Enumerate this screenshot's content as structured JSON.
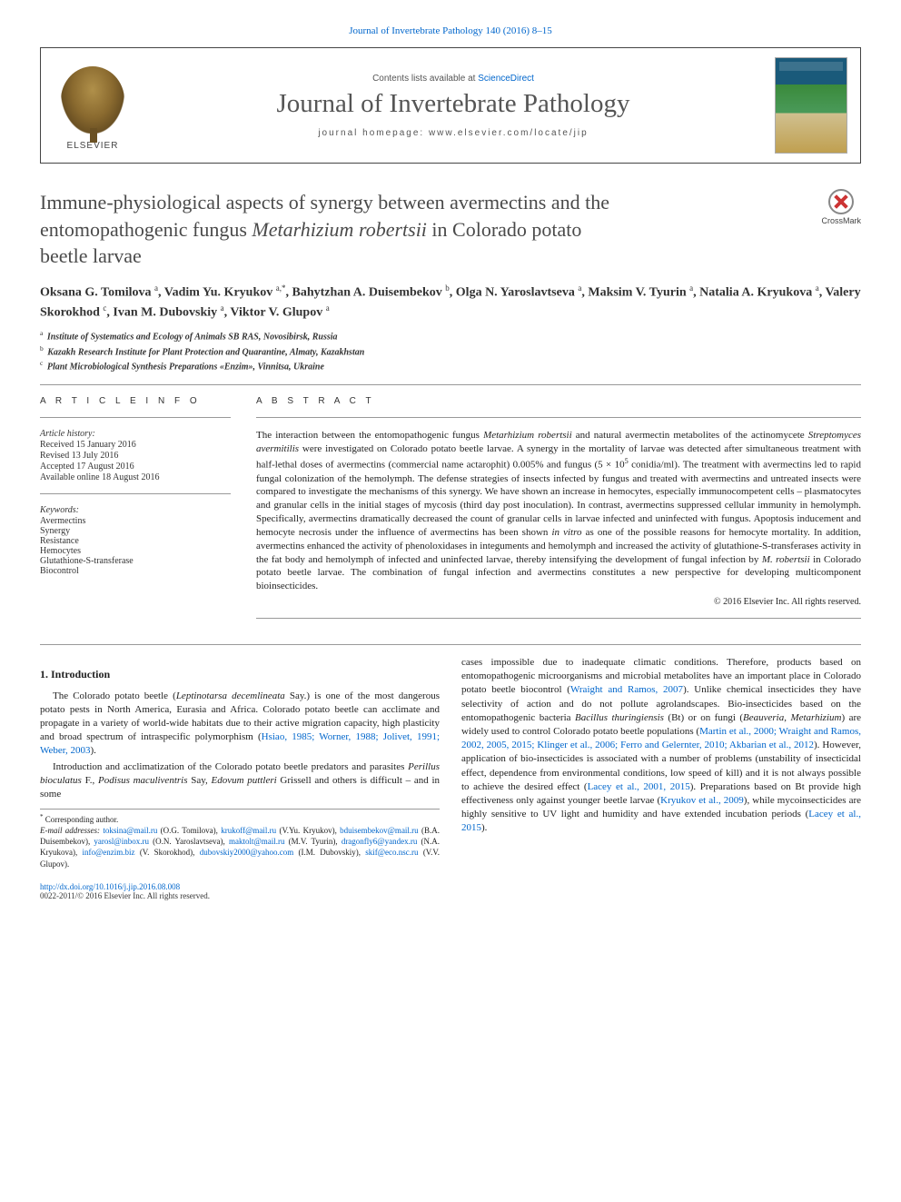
{
  "top_link": "Journal of Invertebrate Pathology 140 (2016) 8–15",
  "masthead": {
    "contents_prefix": "Contents lists available at ",
    "contents_link": "ScienceDirect",
    "journal_name": "Journal of Invertebrate Pathology",
    "homepage_prefix": "journal homepage: ",
    "homepage_url": "www.elsevier.com/locate/jip",
    "elsevier_label": "ELSEVIER"
  },
  "title": {
    "line1": "Immune-physiological aspects of synergy between avermectins and the",
    "line2_pre": "entomopathogenic fungus ",
    "line2_em": "Metarhizium robertsii",
    "line2_post": " in Colorado potato",
    "line3": "beetle larvae"
  },
  "crossmark_label": "CrossMark",
  "authors_html": "Oksana G. Tomilova <sup>a</sup>, Vadim Yu. Kryukov <sup>a,*</sup>, Bahytzhan A. Duisembekov <sup>b</sup>, Olga N. Yaroslavtseva <sup>a</sup>, Maksim V. Tyurin <sup>a</sup>, Natalia A. Kryukova <sup>a</sup>, Valery Skorokhod <sup>c</sup>, Ivan M. Dubovskiy <sup>a</sup>, Viktor V. Glupov <sup>a</sup>",
  "affiliations": [
    {
      "sup": "a",
      "text": "Institute of Systematics and Ecology of Animals SB RAS, Novosibirsk, Russia"
    },
    {
      "sup": "b",
      "text": "Kazakh Research Institute for Plant Protection and Quarantine, Almaty, Kazakhstan"
    },
    {
      "sup": "c",
      "text": "Plant Microbiological Synthesis Preparations «Enzim», Vinnitsa, Ukraine"
    }
  ],
  "article_info": {
    "header": "A R T I C L E   I N F O",
    "history_header": "Article history:",
    "history": [
      "Received 15 January 2016",
      "Revised 13 July 2016",
      "Accepted 17 August 2016",
      "Available online 18 August 2016"
    ],
    "keywords_header": "Keywords:",
    "keywords": [
      "Avermectins",
      "Synergy",
      "Resistance",
      "Hemocytes",
      "Glutathione-S-transferase",
      "Biocontrol"
    ]
  },
  "abstract": {
    "header": "A B S T R A C T",
    "text_html": "The interaction between the entomopathogenic fungus <em>Metarhizium robertsii</em> and natural avermectin metabolites of the actinomycete <em>Streptomyces avermitilis</em> were investigated on Colorado potato beetle larvae. A synergy in the mortality of larvae was detected after simultaneous treatment with half-lethal doses of avermectins (commercial name actarophit) 0.005% and fungus (5 × 10<sup>5</sup> conidia/ml). The treatment with avermectins led to rapid fungal colonization of the hemolymph. The defense strategies of insects infected by fungus and treated with avermectins and untreated insects were compared to investigate the mechanisms of this synergy. We have shown an increase in hemocytes, especially immunocompetent cells – plasmatocytes and granular cells in the initial stages of mycosis (third day post inoculation). In contrast, avermectins suppressed cellular immunity in hemolymph. Specifically, avermectins dramatically decreased the count of granular cells in larvae infected and uninfected with fungus. Apoptosis inducement and hemocyte necrosis under the influence of avermectins has been shown <em>in vitro</em> as one of the possible reasons for hemocyte mortality. In addition, avermectins enhanced the activity of phenoloxidases in integuments and hemolymph and increased the activity of glutathione-S-transferases activity in the fat body and hemolymph of infected and uninfected larvae, thereby intensifying the development of fungal infection by <em>M. robertsii</em> in Colorado potato beetle larvae. The combination of fungal infection and avermectins constitutes a new perspective for developing multicomponent bioinsecticides.",
    "copyright": "© 2016 Elsevier Inc. All rights reserved."
  },
  "body": {
    "section_heading": "1. Introduction",
    "p1_html": "The Colorado potato beetle (<em>Leptinotarsa decemlineata</em> Say.) is one of the most dangerous potato pests in North America, Eurasia and Africa. Colorado potato beetle can acclimate and propagate in a variety of world-wide habitats due to their active migration capacity, high plasticity and broad spectrum of intraspecific polymorphism (<a>Hsiao, 1985; Worner, 1988; Jolivet, 1991; Weber, 2003</a>).",
    "p2_html": "Introduction and acclimatization of the Colorado potato beetle predators and parasites <em>Perillus bioculatus</em> F., <em>Podisus maculiventris</em> Say, <em>Edovum puttleri</em> Grissell and others is difficult – and in some",
    "p3_html": "cases impossible due to inadequate climatic conditions. Therefore, products based on entomopathogenic microorganisms and microbial metabolites have an important place in Colorado potato beetle biocontrol (<a>Wraight and Ramos, 2007</a>). Unlike chemical insecticides they have selectivity of action and do not pollute agrolandscapes. Bio-insecticides based on the entomopathogenic bacteria <em>Bacillus thuringiensis</em> (Bt) or on fungi (<em>Beauveria</em>, <em>Metarhizium</em>) are widely used to control Colorado potato beetle populations (<a>Martin et al., 2000; Wraight and Ramos, 2002, 2005, 2015; Klinger et al., 2006; Ferro and Gelernter, 2010; Akbarian et al., 2012</a>). However, application of bio-insecticides is associated with a number of problems (unstability of insecticidal effect, dependence from environmental conditions, low speed of kill) and it is not always possible to achieve the desired effect (<a>Lacey et al., 2001, 2015</a>). Preparations based on Bt provide high effectiveness only against younger beetle larvae (<a>Kryukov et al., 2009</a>), while mycoinsecticides are highly sensitive to UV light and humidity and have extended incubation periods (<a>Lacey et al., 2015</a>)."
  },
  "correspondence": {
    "star": "* Corresponding author.",
    "emails_label": "E-mail addresses:",
    "emails_html": "<a>toksina@mail.ru</a> (O.G. Tomilova), <a>krukoff@mail.ru</a> (V.Yu. Kryukov), <a>bduisembekov@mail.ru</a> (B.A. Duisembekov), <a>yarosl@inbox.ru</a> (O.N. Yaroslavtseva), <a>maktolt@mail.ru</a> (M.V. Tyurin), <a>dragonfly6@yandex.ru</a> (N.A. Kryukova), <a>info@enzim.biz</a> (V. Skorokhod), <a>dubovskiy2000@yahoo.com</a> (I.M. Dubovskiy), <a>skif@eco.nsc.ru</a> (V.V. Glupov)."
  },
  "footer": {
    "doi": "http://dx.doi.org/10.1016/j.jip.2016.08.008",
    "issn_copyright": "0022-2011/© 2016 Elsevier Inc. All rights reserved."
  },
  "colors": {
    "link": "#0066cc",
    "text": "#222222",
    "heading_grey": "#4a4a4a",
    "rule": "#999999"
  }
}
